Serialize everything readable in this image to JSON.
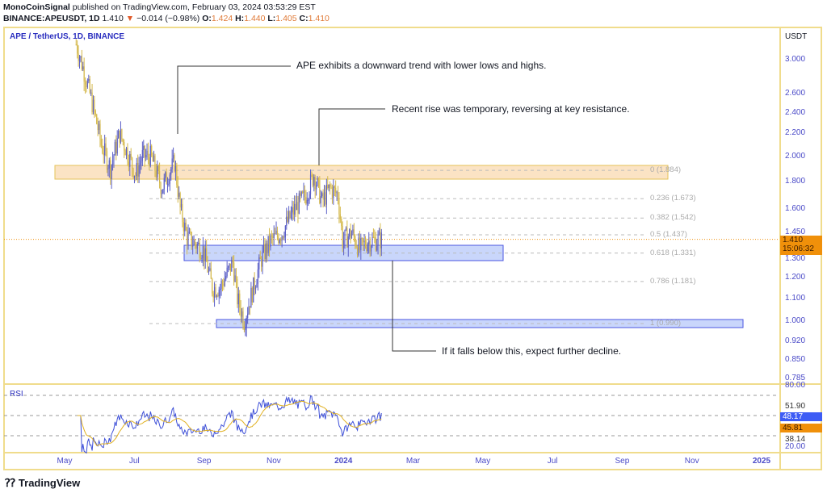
{
  "header": {
    "publisher": "MonoCoinSignal",
    "published_text": "published on TradingView.com, February 03, 2024 03:53:29 EST",
    "symbol": "BINANCE:APEUSDT, 1D",
    "last": "1.410",
    "change": "−0.014 (−0.98%)",
    "o_label": "O:",
    "o": "1.424",
    "h_label": "H:",
    "h": "1.440",
    "l_label": "L:",
    "l": "1.405",
    "c_label": "C:",
    "c": "1.410"
  },
  "chart": {
    "symbol_label": "APE / TetherUS, 1D, BINANCE",
    "currency": "USDT",
    "price_ticks": [
      "3.000",
      "2.600",
      "2.400",
      "2.200",
      "2.000",
      "1.800",
      "1.600",
      "1.450",
      "1.300",
      "1.200",
      "1.100",
      "1.000",
      "0.920",
      "0.850",
      "0.785"
    ],
    "last_price": "1.410",
    "countdown": "15:06:32",
    "time_ticks": [
      "May",
      "Jul",
      "Sep",
      "Nov",
      "2024",
      "Mar",
      "May",
      "Jul",
      "Sep",
      "Nov",
      "2025"
    ],
    "fib_levels": [
      {
        "ratio": "0",
        "price": "1.884"
      },
      {
        "ratio": "0.236",
        "price": "1.673"
      },
      {
        "ratio": "0.382",
        "price": "1.542"
      },
      {
        "ratio": "0.5",
        "price": "1.437"
      },
      {
        "ratio": "0.618",
        "price": "1.331"
      },
      {
        "ratio": "0.786",
        "price": "1.181"
      },
      {
        "ratio": "1",
        "price": "0.990"
      }
    ],
    "annotations": [
      "APE exhibits a downward trend with lower lows and highs.",
      "Recent rise was temporary, reversing at key resistance.",
      "If it falls below this, expect further decline."
    ],
    "colors": {
      "up": "#5b5fc7",
      "down": "#d4b84a",
      "resistance": "#fbe3c4",
      "support": "#c9d6fb",
      "last": "#f0900a"
    }
  },
  "chart_data": {
    "type": "candlestick",
    "price_path": [
      [
        "2023-05-11",
        3.2
      ],
      [
        "2023-05-25",
        2.5
      ],
      [
        "2023-06-02",
        2.1
      ],
      [
        "2023-06-10",
        1.9
      ],
      [
        "2023-06-18",
        2.2
      ],
      [
        "2023-07-02",
        1.85
      ],
      [
        "2023-07-08",
        2.0
      ],
      [
        "2023-07-15",
        2.0
      ],
      [
        "2023-07-25",
        1.75
      ],
      [
        "2023-08-05",
        1.95
      ],
      [
        "2023-08-10",
        1.6
      ],
      [
        "2023-08-16",
        1.42
      ],
      [
        "2023-08-30",
        1.35
      ],
      [
        "2023-09-07",
        1.15
      ],
      [
        "2023-09-14",
        1.15
      ],
      [
        "2023-09-25",
        1.28
      ],
      [
        "2023-09-29",
        1.1
      ],
      [
        "2023-10-05",
        1.0
      ],
      [
        "2023-10-13",
        1.15
      ],
      [
        "2023-10-20",
        1.3
      ],
      [
        "2023-10-28",
        1.4
      ],
      [
        "2023-11-07",
        1.45
      ],
      [
        "2023-11-18",
        1.6
      ],
      [
        "2023-11-28",
        1.7
      ],
      [
        "2023-12-05",
        1.85
      ],
      [
        "2023-12-12",
        1.65
      ],
      [
        "2023-12-19",
        1.75
      ],
      [
        "2023-12-26",
        1.7
      ],
      [
        "2023-12-30",
        1.4
      ],
      [
        "2024-01-07",
        1.45
      ],
      [
        "2024-01-14",
        1.35
      ],
      [
        "2024-01-21",
        1.4
      ],
      [
        "2024-02-03",
        1.41
      ]
    ],
    "rsi": {
      "label": "RSI",
      "ticks": [
        "80.00",
        "20.00"
      ],
      "value": "48.17",
      "ma": "45.81",
      "upper": "51.90",
      "lower": "38.14"
    }
  }
}
